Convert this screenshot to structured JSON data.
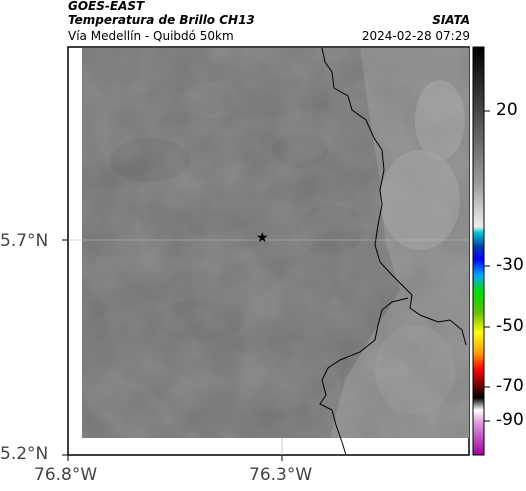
{
  "header": {
    "satellite": "GOES-EAST",
    "product": "Temperatura de Brillo CH13",
    "region": "Vía Medellín - Quibdó 50km",
    "source": "SIATA",
    "timestamp": "2024-02-28 07:29"
  },
  "axes": {
    "lat_labels": [
      "5.7°N",
      "5.2°N"
    ],
    "lon_labels": [
      "76.8°W",
      "76.3°W"
    ]
  },
  "colorbar": {
    "ticks": [
      "20",
      "-30",
      "-50",
      "-70",
      "-90"
    ]
  },
  "marker": {
    "symbol": "★"
  },
  "colors": {
    "land_gray": "#737373",
    "border_black": "#000000",
    "gridline": "#bbbbbb"
  }
}
